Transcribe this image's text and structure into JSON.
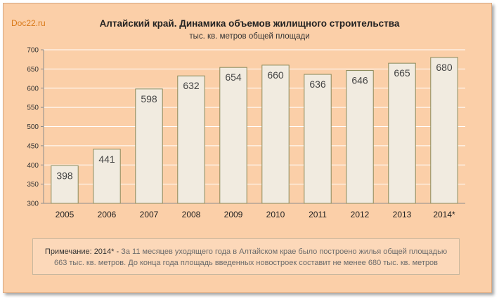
{
  "brand": "Doc22.ru",
  "note": {
    "label": "Примечание: 2014* -",
    "line1": " За 11 месяцев уходящего года в Алтайском крае было построено жилья общей площадью",
    "line2": "663 тыс. кв. метров.  До конца года площадь введенных новостроек составит не менее 680 тыс. кв. метров"
  },
  "colors": {
    "background": "#fbcfa8",
    "bar_fill": "#f1ebe0",
    "bar_stroke": "#8a8a5a",
    "grid": "#ffffff"
  },
  "chart_data": {
    "type": "bar",
    "title": "Алтайский край. Динамика объемов жилищного строительства",
    "subtitle": "тыс. кв. метров общей площади",
    "categories": [
      "2005",
      "2006",
      "2007",
      "2008",
      "2009",
      "2010",
      "2011",
      "2012",
      "2013",
      "2014*"
    ],
    "values": [
      398,
      441,
      598,
      632,
      654,
      660,
      636,
      646,
      665,
      680
    ],
    "ylim": [
      300,
      700
    ],
    "yticks": [
      300,
      350,
      400,
      450,
      500,
      550,
      600,
      650,
      700
    ],
    "grid": true,
    "legend": "none",
    "data_labels": true
  }
}
